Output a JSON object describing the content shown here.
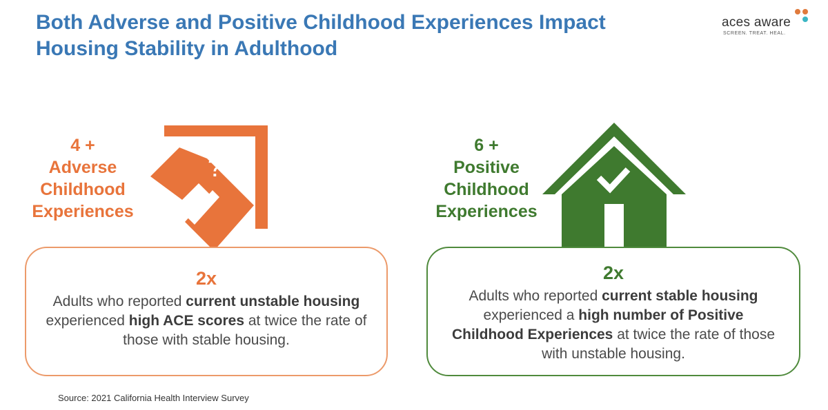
{
  "title": {
    "line1": "Both Adverse and Positive Childhood Experiences Impact",
    "line2": "Housing Stability in Adulthood"
  },
  "logo": {
    "wordmark": "aces aware",
    "tagline": "SCREEN. TREAT. HEAL."
  },
  "adverse": {
    "label_lines": [
      "4 +",
      "Adverse",
      "Childhood",
      "Experiences"
    ],
    "icon_symbol": "?",
    "icon": "broken-house-icon",
    "stat": "2x",
    "text_parts": [
      "Adults who reported ",
      "current unstable housing",
      " experienced ",
      "high ACE scores",
      " at twice the rate of those with stable housing."
    ]
  },
  "positive": {
    "label_lines": [
      "6 +",
      "Positive",
      "Childhood",
      "Experiences"
    ],
    "icon": "house-check-icon",
    "stat": "2x",
    "text_parts": [
      "Adults who reported ",
      "current stable housing",
      " experienced a ",
      "high number of Positive Childhood Experiences",
      " at twice the rate of those with unstable housing."
    ]
  },
  "source": "Source: 2021 California Health Interview Survey",
  "colors": {
    "title": "#3a78b5",
    "adverse": "#e8743b",
    "positive": "#3f7a2f",
    "logo_dot_orange": "#e07a3c",
    "logo_dot_teal": "#3bb6c4"
  }
}
